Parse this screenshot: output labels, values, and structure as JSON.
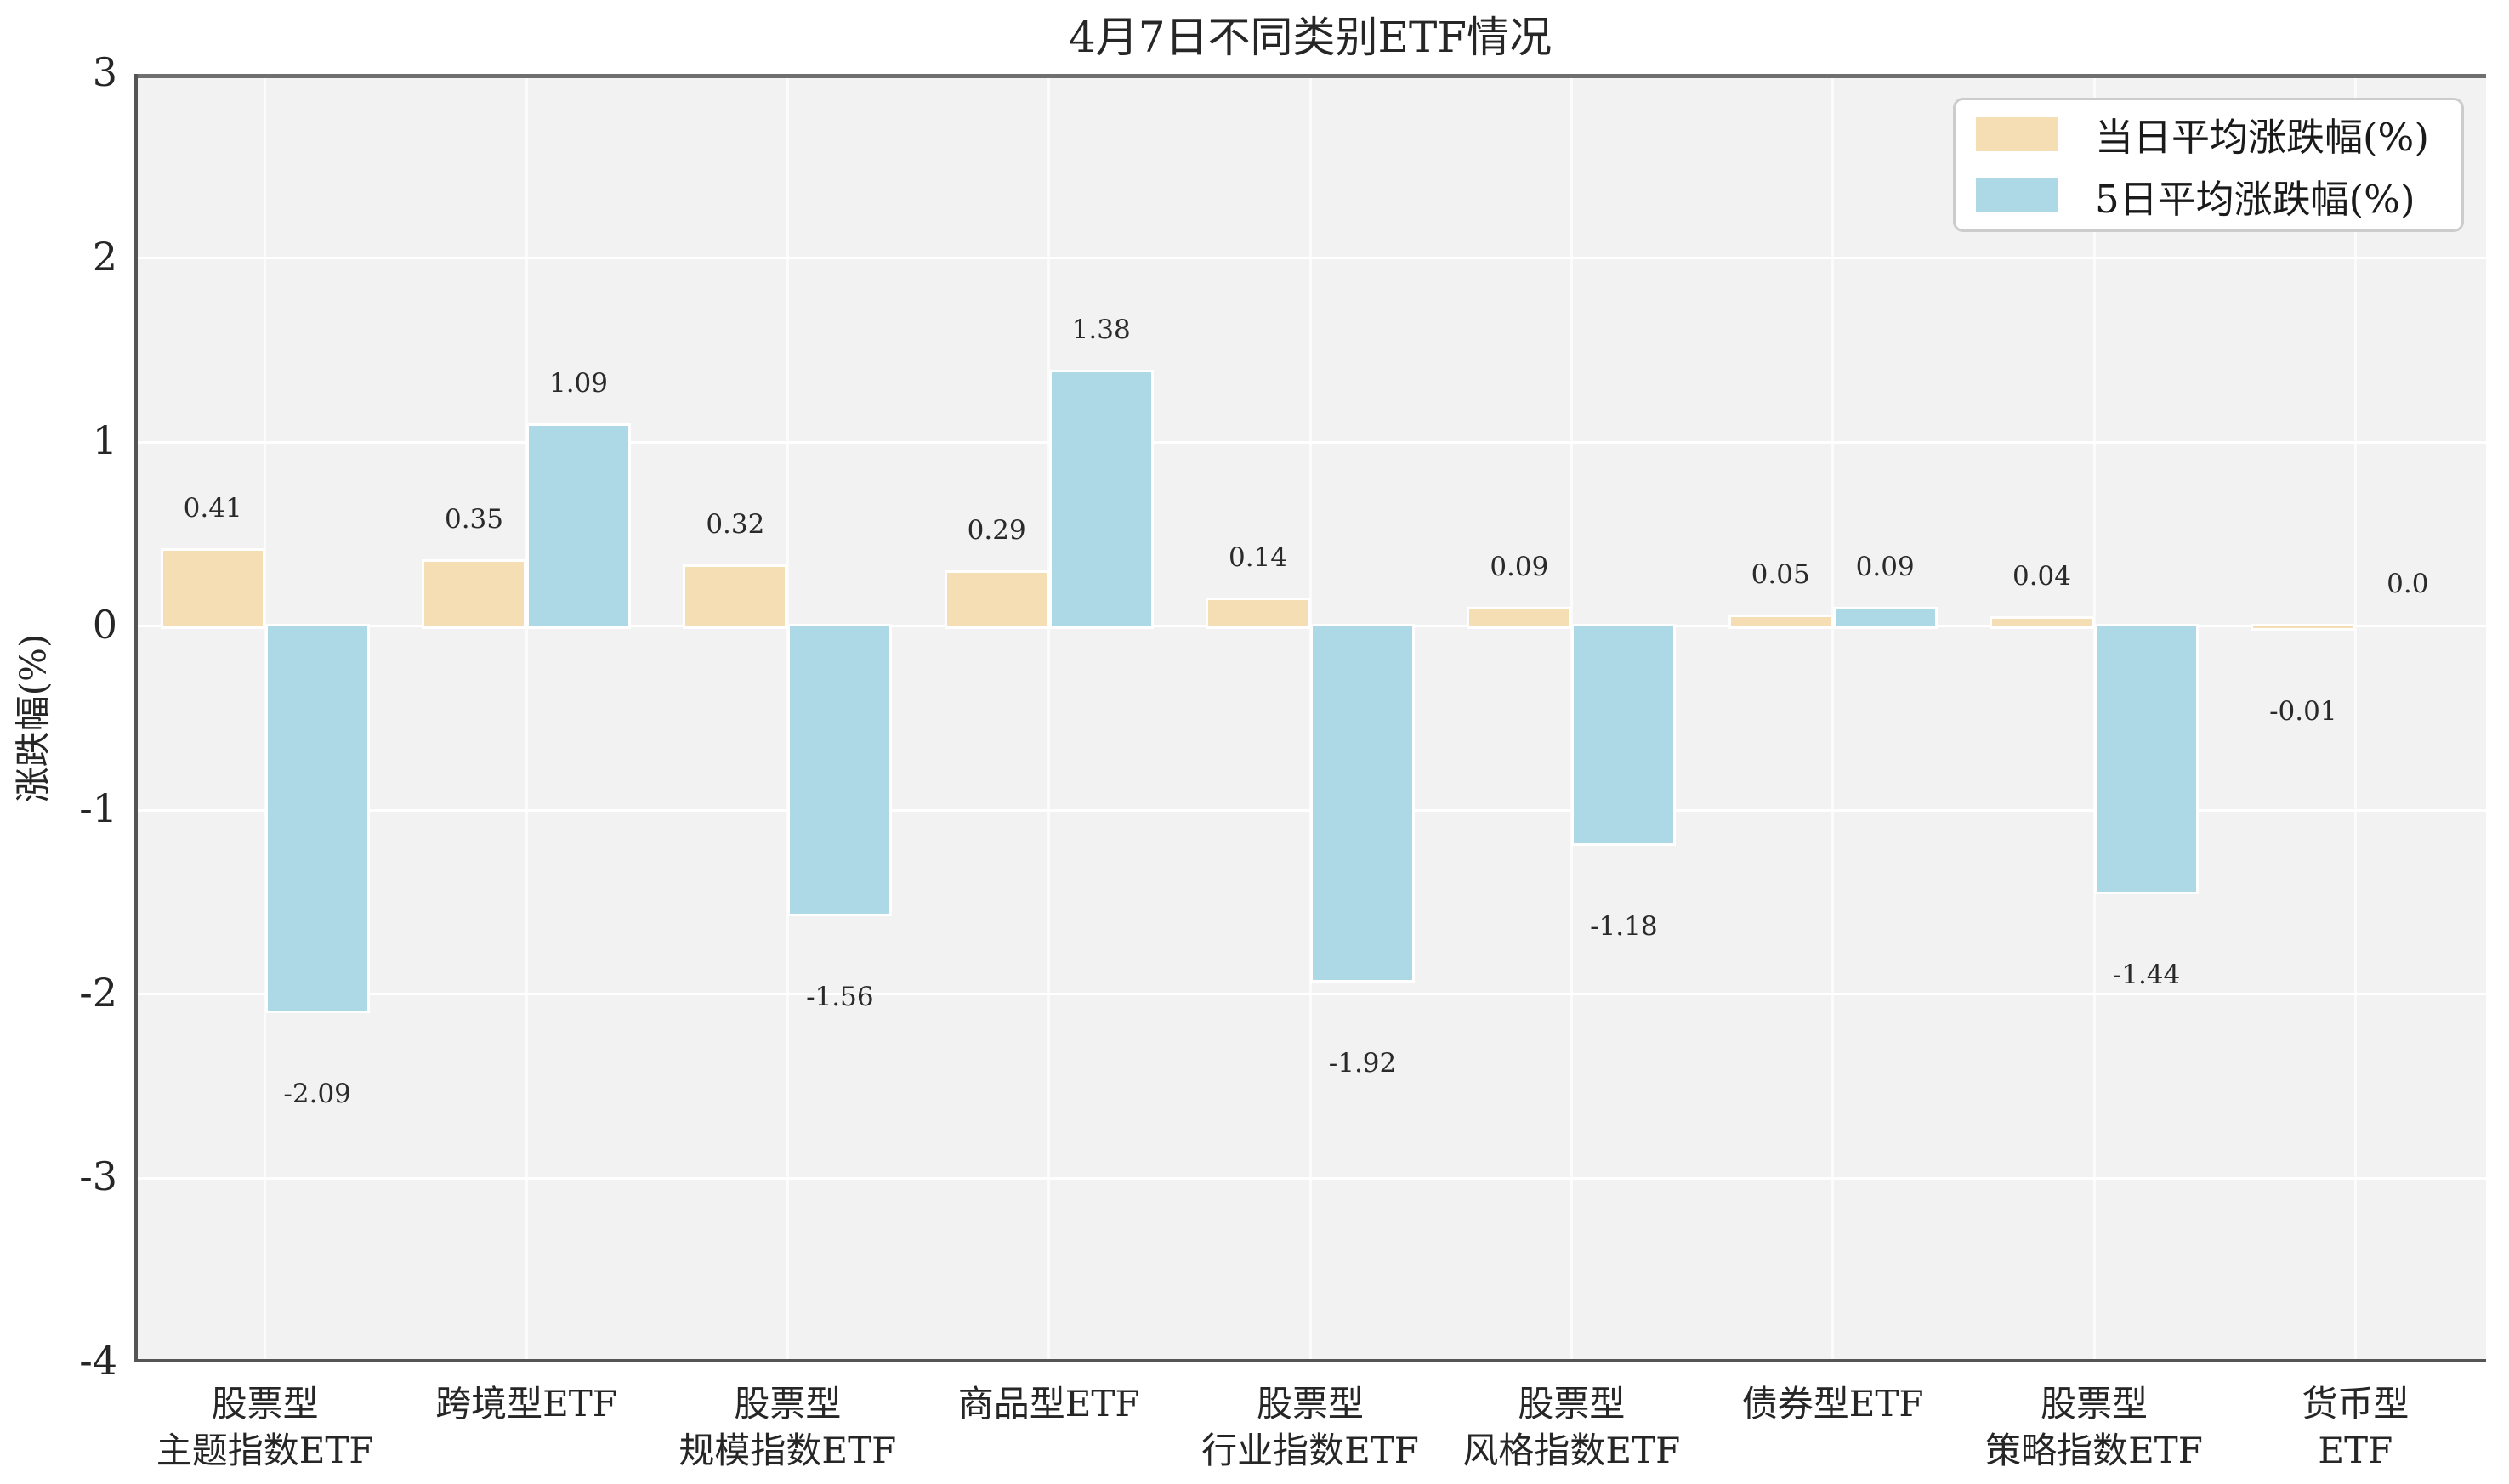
{
  "chart_data": {
    "type": "bar",
    "title": "4月7日不同类别ETF情况",
    "xlabel": "",
    "ylabel": "涨跌幅(%)",
    "ylim": [
      -4,
      3
    ],
    "grid": true,
    "legend_position": "upper right",
    "ytick_values": [
      3,
      2,
      1,
      0,
      -1,
      -2,
      -3,
      -4
    ],
    "yticks": [
      "3",
      "2",
      "1",
      "0",
      "-1",
      "-2",
      "-3",
      "-4"
    ],
    "categories": [
      "股票型\n主题指数ETF",
      "跨境型ETF",
      "股票型\n规模指数ETF",
      "商品型ETF",
      "股票型\n行业指数ETF",
      "股票型\n风格指数ETF",
      "债券型ETF",
      "股票型\n策略指数ETF",
      "货币型ETF"
    ],
    "series": [
      {
        "name": "当日平均涨跌幅(%)",
        "color": "#f5deb3",
        "values": [
          0.41,
          0.35,
          0.32,
          0.29,
          0.14,
          0.09,
          0.05,
          0.04,
          -0.01
        ],
        "labels": [
          "0.41",
          "0.35",
          "0.32",
          "0.29",
          "0.14",
          "0.09",
          "0.05",
          "0.04",
          "-0.01"
        ]
      },
      {
        "name": "5日平均涨跌幅(%)",
        "color": "#add8e6",
        "values": [
          -2.09,
          1.09,
          -1.56,
          1.38,
          -1.92,
          -1.18,
          0.09,
          -1.44,
          0.0
        ],
        "labels": [
          "-2.09",
          "1.09",
          "-1.56",
          "1.38",
          "-1.92",
          "-1.18",
          "0.09",
          "-1.44",
          "0.0"
        ]
      }
    ],
    "colors": {
      "plot_background": "#f2f2f2",
      "figure_background": "#ffffff",
      "gridline": "#ffffff",
      "spine": "#555555",
      "zero_line": "#6f6f6f",
      "bar_edge": "#ffffff",
      "text": "#262626"
    }
  }
}
